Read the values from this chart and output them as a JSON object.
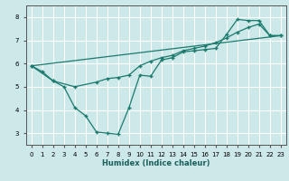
{
  "xlabel": "Humidex (Indice chaleur)",
  "background_color": "#cce8e8",
  "grid_color": "#ffffff",
  "line_color": "#1a7a6e",
  "xlim": [
    -0.5,
    23.5
  ],
  "ylim": [
    2.5,
    8.5
  ],
  "xticks": [
    0,
    1,
    2,
    3,
    4,
    5,
    6,
    7,
    8,
    9,
    10,
    11,
    12,
    13,
    14,
    15,
    16,
    17,
    18,
    19,
    20,
    21,
    22,
    23
  ],
  "yticks": [
    3,
    4,
    5,
    6,
    7,
    8
  ],
  "line1_x": [
    0,
    1,
    2,
    3,
    4,
    5,
    6,
    7,
    8,
    9,
    10,
    11,
    12,
    13,
    14,
    15,
    16,
    17,
    18,
    19,
    20,
    21,
    22,
    23
  ],
  "line1_y": [
    5.9,
    5.65,
    5.25,
    5.0,
    4.1,
    3.75,
    3.05,
    3.0,
    2.95,
    4.1,
    5.5,
    5.45,
    6.15,
    6.25,
    6.5,
    6.55,
    6.6,
    6.65,
    7.25,
    7.9,
    7.85,
    7.85,
    7.2,
    7.2
  ],
  "line2_x": [
    0,
    2,
    4,
    6,
    7,
    8,
    9,
    10,
    11,
    12,
    13,
    14,
    15,
    16,
    17,
    18,
    19,
    20,
    21,
    22,
    23
  ],
  "line2_y": [
    5.9,
    5.25,
    5.0,
    5.2,
    5.35,
    5.4,
    5.5,
    5.9,
    6.1,
    6.25,
    6.35,
    6.55,
    6.65,
    6.75,
    6.9,
    7.1,
    7.35,
    7.55,
    7.7,
    7.2,
    7.2
  ],
  "line3_x": [
    0,
    23
  ],
  "line3_y": [
    5.9,
    7.2
  ]
}
